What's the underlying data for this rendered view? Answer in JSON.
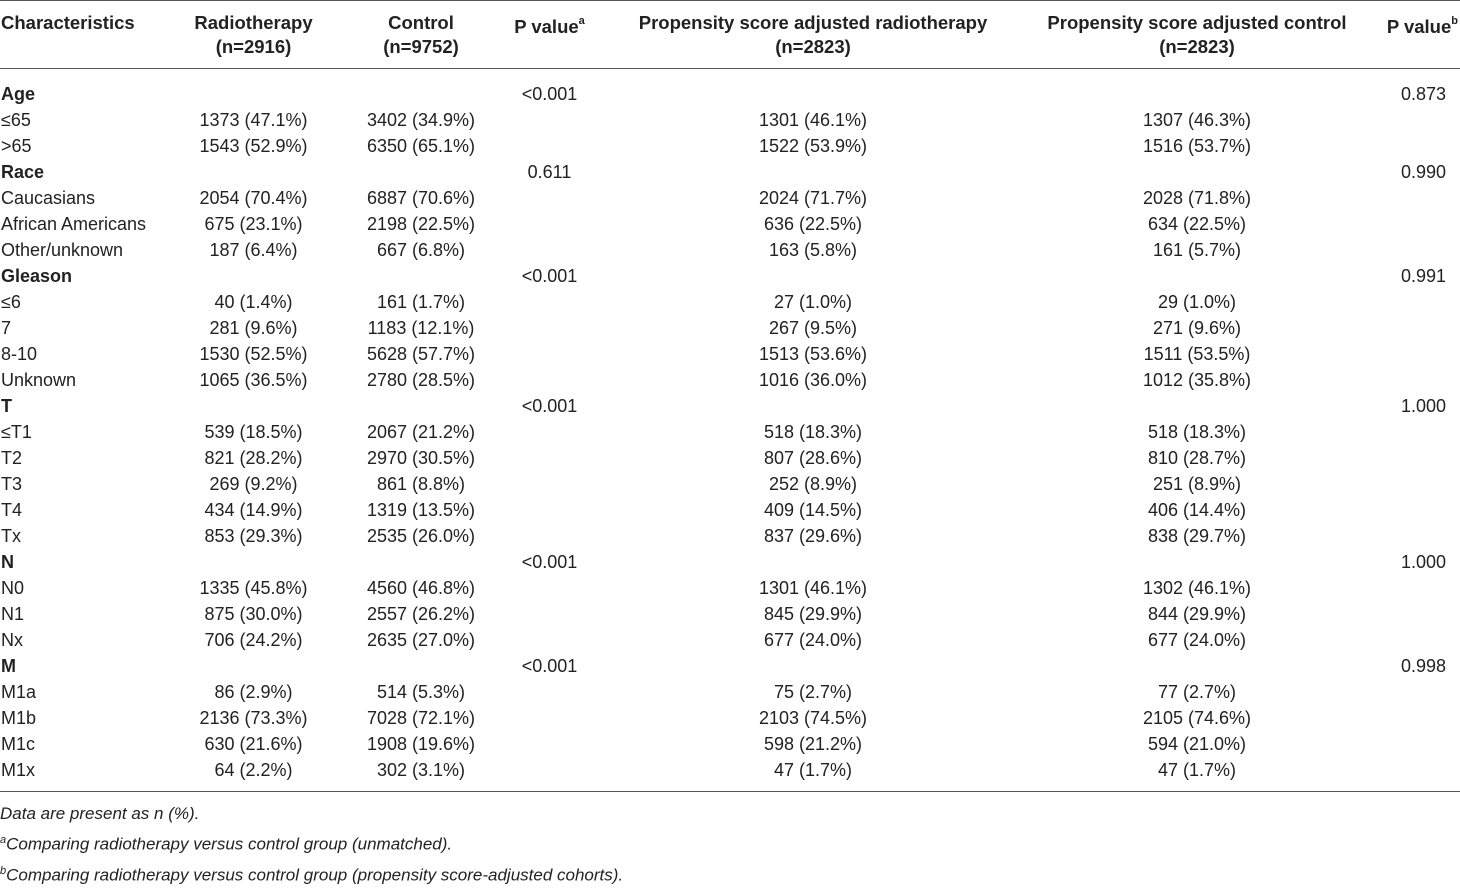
{
  "headers": {
    "characteristics": "Characteristics",
    "radiotherapy": "Radiotherapy",
    "radiotherapy_n": "(n=2916)",
    "control": "Control",
    "control_n": "(n=9752)",
    "pvalue_a": "P value",
    "pvalue_a_sup": "a",
    "ps_radiotherapy": "Propensity score adjusted radiotherapy",
    "ps_radiotherapy_n": "(n=2823)",
    "ps_control": "Propensity score adjusted control",
    "ps_control_n": "(n=2823)",
    "pvalue_b": "P value",
    "pvalue_b_sup": "b"
  },
  "rows": [
    {
      "label": "Age",
      "rt": "",
      "ctrl": "",
      "pa": "<0.001",
      "psrt": "",
      "psctrl": "",
      "pb": "0.873"
    },
    {
      "label": "≤65",
      "rt": "1373 (47.1%)",
      "ctrl": "3402 (34.9%)",
      "pa": "",
      "psrt": "1301 (46.1%)",
      "psctrl": "1307 (46.3%)",
      "pb": ""
    },
    {
      "label": ">65",
      "rt": "1543 (52.9%)",
      "ctrl": "6350 (65.1%)",
      "pa": "",
      "psrt": "1522 (53.9%)",
      "psctrl": "1516 (53.7%)",
      "pb": ""
    },
    {
      "label": "Race",
      "rt": "",
      "ctrl": "",
      "pa": "0.611",
      "psrt": "",
      "psctrl": "",
      "pb": "0.990"
    },
    {
      "label": "Caucasians",
      "rt": "2054 (70.4%)",
      "ctrl": "6887 (70.6%)",
      "pa": "",
      "psrt": "2024 (71.7%)",
      "psctrl": "2028 (71.8%)",
      "pb": ""
    },
    {
      "label": "African Americans",
      "rt": "675 (23.1%)",
      "ctrl": "2198 (22.5%)",
      "pa": "",
      "psrt": "636 (22.5%)",
      "psctrl": "634 (22.5%)",
      "pb": ""
    },
    {
      "label": "Other/unknown",
      "rt": "187 (6.4%)",
      "ctrl": "667 (6.8%)",
      "pa": "",
      "psrt": "163 (5.8%)",
      "psctrl": "161 (5.7%)",
      "pb": ""
    },
    {
      "label": "Gleason",
      "rt": "",
      "ctrl": "",
      "pa": "<0.001",
      "psrt": "",
      "psctrl": "",
      "pb": "0.991"
    },
    {
      "label": "≤6",
      "rt": "40 (1.4%)",
      "ctrl": "161 (1.7%)",
      "pa": "",
      "psrt": "27 (1.0%)",
      "psctrl": "29 (1.0%)",
      "pb": ""
    },
    {
      "label": "7",
      "rt": "281 (9.6%)",
      "ctrl": "1183 (12.1%)",
      "pa": "",
      "psrt": "267 (9.5%)",
      "psctrl": "271 (9.6%)",
      "pb": ""
    },
    {
      "label": "8-10",
      "rt": "1530 (52.5%)",
      "ctrl": "5628 (57.7%)",
      "pa": "",
      "psrt": "1513 (53.6%)",
      "psctrl": "1511 (53.5%)",
      "pb": ""
    },
    {
      "label": "Unknown",
      "rt": "1065 (36.5%)",
      "ctrl": "2780 (28.5%)",
      "pa": "",
      "psrt": "1016 (36.0%)",
      "psctrl": "1012 (35.8%)",
      "pb": ""
    },
    {
      "label": "T",
      "rt": "",
      "ctrl": "",
      "pa": "<0.001",
      "psrt": "",
      "psctrl": "",
      "pb": "1.000"
    },
    {
      "label": "≤T1",
      "rt": "539 (18.5%)",
      "ctrl": "2067 (21.2%)",
      "pa": "",
      "psrt": "518 (18.3%)",
      "psctrl": "518 (18.3%)",
      "pb": ""
    },
    {
      "label": "T2",
      "rt": "821 (28.2%)",
      "ctrl": "2970 (30.5%)",
      "pa": "",
      "psrt": "807 (28.6%)",
      "psctrl": "810 (28.7%)",
      "pb": ""
    },
    {
      "label": "T3",
      "rt": "269 (9.2%)",
      "ctrl": "861 (8.8%)",
      "pa": "",
      "psrt": "252 (8.9%)",
      "psctrl": "251 (8.9%)",
      "pb": ""
    },
    {
      "label": "T4",
      "rt": "434 (14.9%)",
      "ctrl": "1319 (13.5%)",
      "pa": "",
      "psrt": "409 (14.5%)",
      "psctrl": "406 (14.4%)",
      "pb": ""
    },
    {
      "label": "Tx",
      "rt": "853 (29.3%)",
      "ctrl": "2535 (26.0%)",
      "pa": "",
      "psrt": "837 (29.6%)",
      "psctrl": "838 (29.7%)",
      "pb": ""
    },
    {
      "label": "N",
      "rt": "",
      "ctrl": "",
      "pa": "<0.001",
      "psrt": "",
      "psctrl": "",
      "pb": "1.000"
    },
    {
      "label": "N0",
      "rt": "1335 (45.8%)",
      "ctrl": "4560 (46.8%)",
      "pa": "",
      "psrt": "1301 (46.1%)",
      "psctrl": "1302 (46.1%)",
      "pb": ""
    },
    {
      "label": "N1",
      "rt": "875 (30.0%)",
      "ctrl": "2557 (26.2%)",
      "pa": "",
      "psrt": "845 (29.9%)",
      "psctrl": "844 (29.9%)",
      "pb": ""
    },
    {
      "label": "Nx",
      "rt": "706 (24.2%)",
      "ctrl": "2635 (27.0%)",
      "pa": "",
      "psrt": "677 (24.0%)",
      "psctrl": "677 (24.0%)",
      "pb": ""
    },
    {
      "label": "M",
      "rt": "",
      "ctrl": "",
      "pa": "<0.001",
      "psrt": "",
      "psctrl": "",
      "pb": "0.998"
    },
    {
      "label": "M1a",
      "rt": "86 (2.9%)",
      "ctrl": "514 (5.3%)",
      "pa": "",
      "psrt": "75 (2.7%)",
      "psctrl": "77 (2.7%)",
      "pb": ""
    },
    {
      "label": "M1b",
      "rt": "2136 (73.3%)",
      "ctrl": "7028 (72.1%)",
      "pa": "",
      "psrt": "2103 (74.5%)",
      "psctrl": "2105 (74.6%)",
      "pb": ""
    },
    {
      "label": "M1c",
      "rt": "630 (21.6%)",
      "ctrl": "1908 (19.6%)",
      "pa": "",
      "psrt": "598 (21.2%)",
      "psctrl": "594 (21.0%)",
      "pb": ""
    },
    {
      "label": "M1x",
      "rt": "64 (2.2%)",
      "ctrl": "302 (3.1%)",
      "pa": "",
      "psrt": "47 (1.7%)",
      "psctrl": "47 (1.7%)",
      "pb": ""
    }
  ],
  "footnotes": {
    "data_note": "Data are present as n (%).",
    "a_sup": "a",
    "a_text": "Comparing radiotherapy versus control group (unmatched).",
    "b_sup": "b",
    "b_text": "Comparing radiotherapy versus control group (propensity score-adjusted cohorts)."
  }
}
